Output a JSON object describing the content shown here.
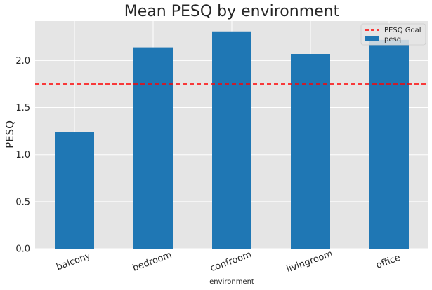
{
  "chart_data": {
    "type": "bar",
    "title": "Mean PESQ by environment",
    "xlabel": "environment",
    "ylabel": "PESQ",
    "categories": [
      "balcony",
      "bedroom",
      "confroom",
      "livingroom",
      "office"
    ],
    "series": [
      {
        "name": "pesq",
        "values": [
          1.24,
          2.14,
          2.31,
          2.07,
          2.22
        ],
        "color": "#1f77b4"
      }
    ],
    "reference_line": {
      "name": "PESQ Goal",
      "value": 1.75,
      "color": "#ff0000",
      "style": "dashed"
    },
    "ylim": [
      0,
      2.42
    ],
    "yticks": [
      "0.0",
      "0.5",
      "1.0",
      "1.5",
      "2.0"
    ],
    "grid": true,
    "legend_position": "top-right",
    "colors": {
      "plot_background": "#e5e5e5",
      "grid": "#ffffff"
    }
  }
}
